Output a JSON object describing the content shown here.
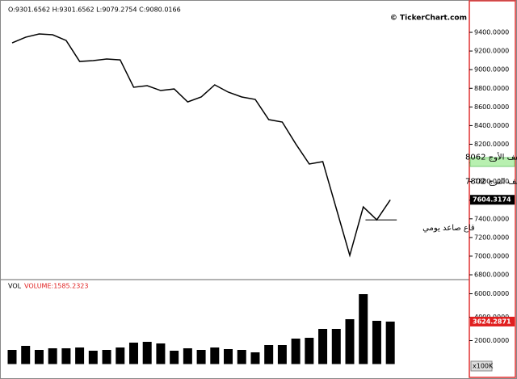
{
  "chart_data": [
    {
      "type": "line",
      "header": "O:9301.6562  H:9301.6562  L:9079.2754  C:9080.0166",
      "title": "© TickerChart.com",
      "categories": [
        null,
        null,
        null,
        null,
        null,
        null,
        null,
        null,
        null,
        null,
        null,
        null,
        null,
        null,
        null,
        null,
        null,
        null,
        null,
        null,
        null,
        null,
        null,
        null,
        null,
        null,
        null,
        null,
        null
      ],
      "values": [
        9287,
        9348,
        9383,
        9374,
        9313,
        9088,
        9097,
        9114,
        9105,
        8811,
        8828,
        8776,
        8793,
        8654,
        8707,
        8837,
        8759,
        8707,
        8681,
        8464,
        8438,
        8204,
        7988,
        8014,
        7511,
        7008,
        7528,
        7389,
        7604
      ],
      "color": "#000000",
      "ylim": [
        6757,
        9747
      ],
      "yticks": [
        {
          "value": 6800,
          "label": "6800.0000"
        },
        {
          "value": 7000,
          "label": "7000.0000"
        },
        {
          "value": 7200,
          "label": "7200.0000"
        },
        {
          "value": 7400,
          "label": "7400.0000"
        },
        {
          "value": 7600,
          "label": "7600.0000"
        },
        {
          "value": 7800,
          "label": "7800.0000"
        },
        {
          "value": 8000,
          "label": "8000.0000"
        },
        {
          "value": 8200,
          "label": "8200.0000"
        },
        {
          "value": 8400,
          "label": "8400.0000"
        },
        {
          "value": 8600,
          "label": "8600.0000"
        },
        {
          "value": 8800,
          "label": "8800.0000"
        },
        {
          "value": 9000,
          "label": "9000.0000"
        },
        {
          "value": 9200,
          "label": "9200.0000"
        },
        {
          "value": 9400,
          "label": "9400.0000"
        }
      ],
      "last_value": {
        "value": 7604.3174,
        "label": "7604.3174"
      },
      "highlight_band": {
        "range": [
          7962,
          8057
        ],
        "color": "#b8f0b0"
      },
      "annotations": [
        {
          "text": "شفف الأوج 8062",
          "value": 8062
        },
        {
          "text": "شفف الترج 7802",
          "value": 7802
        }
      ],
      "support": {
        "text": "قاع صاعد يومي",
        "value": 7389
      }
    },
    {
      "type": "bar",
      "title": "VOL",
      "subtitle": "VOLUME:1585.2323",
      "unit": "x100K",
      "categories": [
        null,
        null,
        null,
        null,
        null,
        null,
        null,
        null,
        null,
        null,
        null,
        null,
        null,
        null,
        null,
        null,
        null,
        null,
        null,
        null,
        null,
        null,
        null,
        null,
        null,
        null,
        null,
        null,
        null
      ],
      "values": [
        1207,
        1552,
        1207,
        1345,
        1345,
        1414,
        1138,
        1207,
        1414,
        1828,
        1897,
        1759,
        1138,
        1345,
        1207,
        1414,
        1276,
        1207,
        1000,
        1621,
        1621,
        2172,
        2241,
        3000,
        3000,
        3828,
        5966,
        3690,
        3624
      ],
      "color": "#000000",
      "ylim": [
        -1000,
        7138
      ],
      "yticks": [
        {
          "value": 2000,
          "label": "2000.0000"
        },
        {
          "value": 4000,
          "label": "4000.0000"
        },
        {
          "value": 6000,
          "label": "6000.0000"
        }
      ],
      "last_value": {
        "value": 3624.2871,
        "label": "3624.2871"
      }
    }
  ]
}
